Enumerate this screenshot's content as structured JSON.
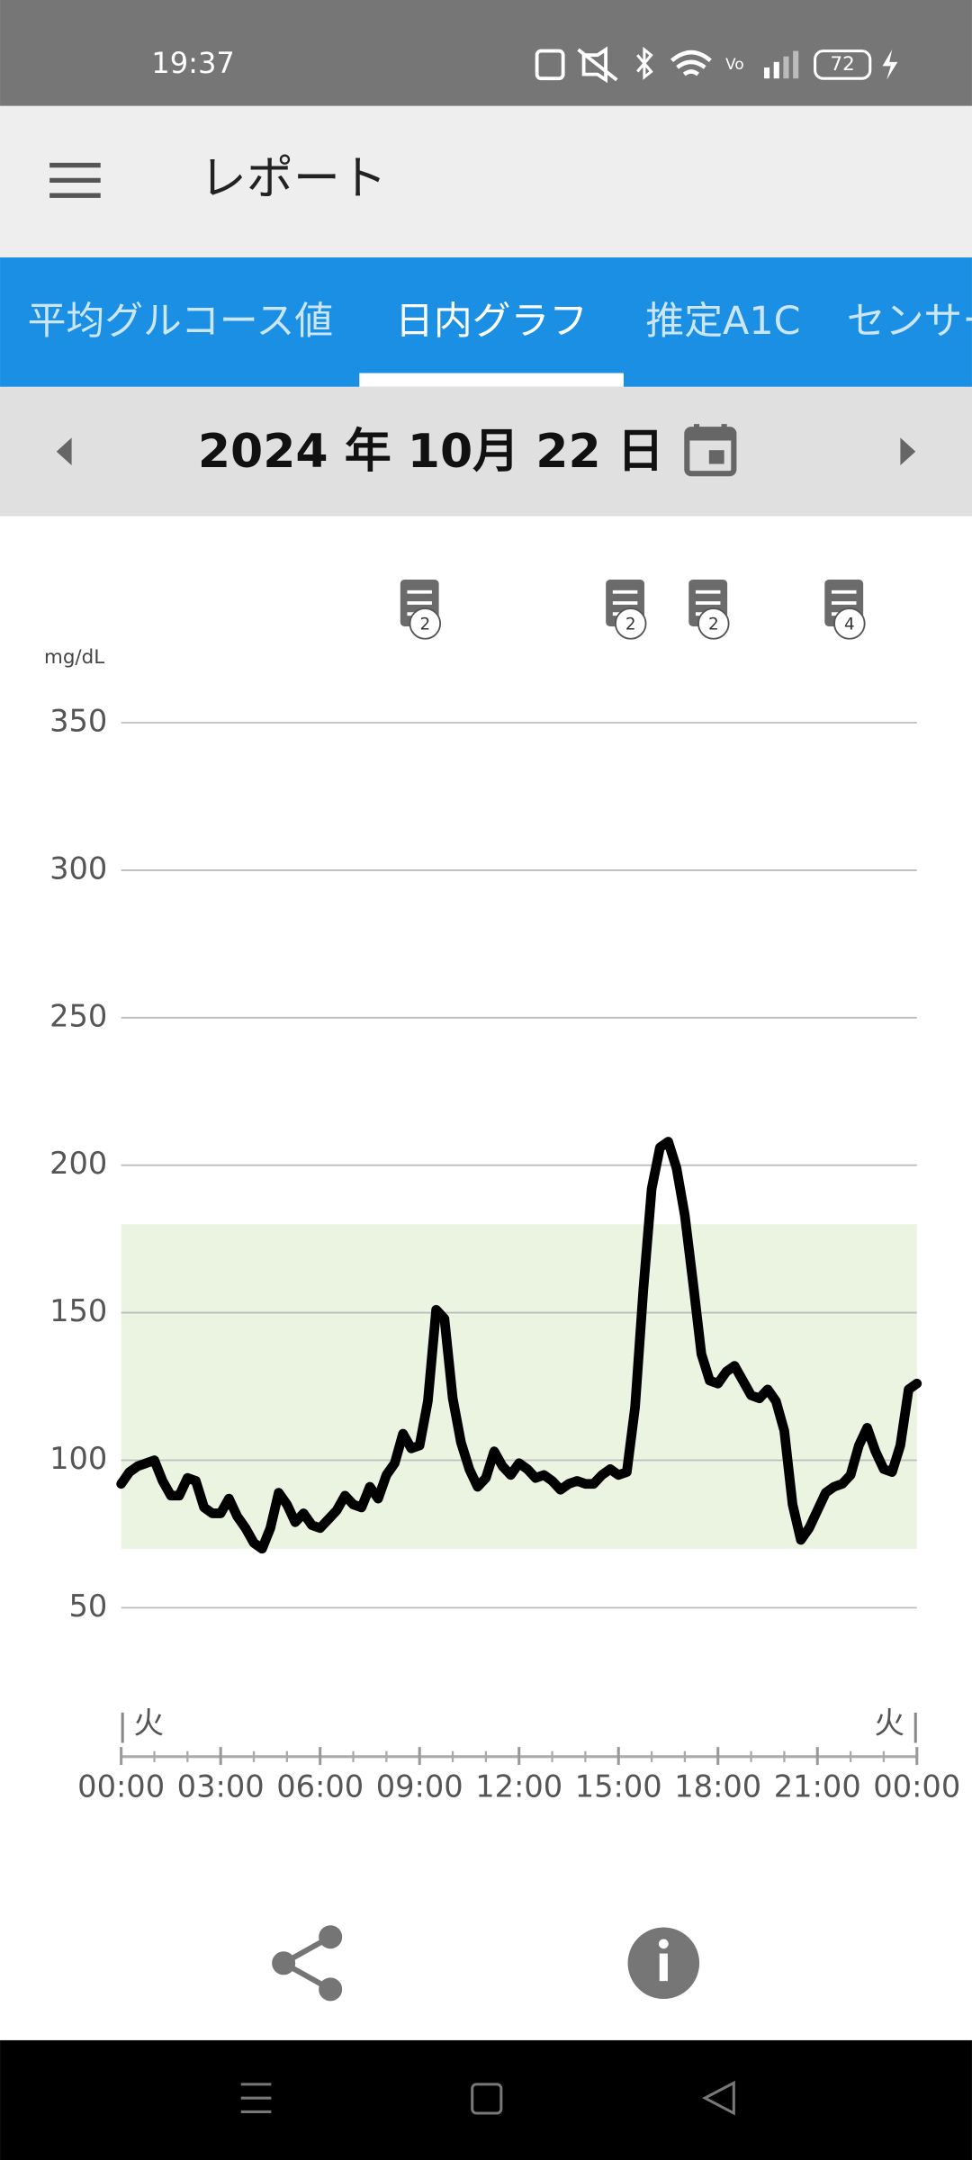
{
  "status_bar": {
    "time": "19:37",
    "battery": "72"
  },
  "app_bar": {
    "title": "レポート"
  },
  "tabs": [
    "平均グルコース値",
    "日内グラフ",
    "推定A1C",
    "センサー"
  ],
  "selected_tab": 1,
  "date": "2024 年 10月 22 日",
  "chart_data": {
    "type": "line",
    "y_label": "mg/dL",
    "color": "#000000",
    "x": [
      0,
      0.25,
      0.5,
      0.75,
      1,
      1.25,
      1.5,
      1.75,
      2,
      2.25,
      2.5,
      2.75,
      3,
      3.25,
      3.5,
      3.75,
      4,
      4.25,
      4.5,
      4.75,
      5,
      5.25,
      5.5,
      5.75,
      6,
      6.25,
      6.5,
      6.75,
      7,
      7.25,
      7.5,
      7.75,
      8,
      8.25,
      8.5,
      8.75,
      9,
      9.25,
      9.5,
      9.75,
      10,
      10.25,
      10.5,
      10.75,
      11,
      11.25,
      11.5,
      11.75,
      12,
      12.25,
      12.5,
      12.75,
      13,
      13.25,
      13.5,
      13.75,
      14,
      14.25,
      14.5,
      14.75,
      15,
      15.25,
      15.5,
      15.75,
      16,
      16.25,
      16.5,
      16.75,
      17,
      17.25,
      17.5,
      17.75,
      18,
      18.25,
      18.5,
      18.75,
      19,
      19.25,
      19.5,
      19.75,
      20,
      20.25,
      20.5,
      20.75,
      21,
      21.25,
      21.5,
      21.75,
      22,
      22.25,
      22.5,
      22.75,
      23,
      23.25,
      23.5,
      23.75,
      24
    ],
    "values": [
      92,
      96,
      98,
      99,
      100,
      93,
      88,
      88,
      94,
      93,
      84,
      82,
      82,
      87,
      81,
      77,
      72,
      70,
      77,
      89,
      85,
      79,
      82,
      78,
      77,
      80,
      83,
      88,
      85,
      84,
      91,
      87,
      95,
      99,
      109,
      104,
      105,
      120,
      151,
      148,
      121,
      106,
      97,
      91,
      94,
      103,
      98,
      95,
      99,
      97,
      94,
      95,
      93,
      90,
      92,
      93,
      92,
      92,
      95,
      97,
      95,
      96,
      118,
      158,
      192,
      206,
      208,
      199,
      183,
      160,
      136,
      127,
      126,
      130,
      132,
      127,
      122,
      121,
      124,
      120,
      110,
      85,
      73,
      77,
      83,
      89,
      91,
      92,
      95,
      105,
      111,
      103,
      97,
      96,
      105,
      124,
      126
    ],
    "xlim": [
      0,
      24
    ],
    "ylim": [
      0,
      375
    ],
    "yticks": [
      50,
      100,
      150,
      200,
      250,
      300,
      350
    ],
    "xticks": [
      {
        "value": 0,
        "label": "00:00"
      },
      {
        "value": 3,
        "label": "03:00"
      },
      {
        "value": 6,
        "label": "06:00"
      },
      {
        "value": 9,
        "label": "09:00"
      },
      {
        "value": 12,
        "label": "12:00"
      },
      {
        "value": 15,
        "label": "15:00"
      },
      {
        "value": 18,
        "label": "18:00"
      },
      {
        "value": 21,
        "label": "21:00"
      },
      {
        "value": 24,
        "label": "00:00"
      }
    ],
    "xminorticks": [
      0,
      1,
      2,
      3,
      4,
      5,
      6,
      7,
      8,
      9,
      10,
      11,
      12,
      13,
      14,
      15,
      16,
      17,
      18,
      19,
      20,
      21,
      22,
      23,
      24
    ],
    "grid": true,
    "target_range": [
      70,
      180
    ],
    "target_color": "#eaf4e1",
    "day_labels": [
      {
        "value": 0,
        "label": "火"
      },
      {
        "value": 24,
        "label": "火"
      }
    ],
    "notes": [
      {
        "x": 9,
        "count": 2
      },
      {
        "x": 15.2,
        "count": 2
      },
      {
        "x": 17.7,
        "count": 2
      },
      {
        "x": 21.8,
        "count": 4
      }
    ]
  }
}
